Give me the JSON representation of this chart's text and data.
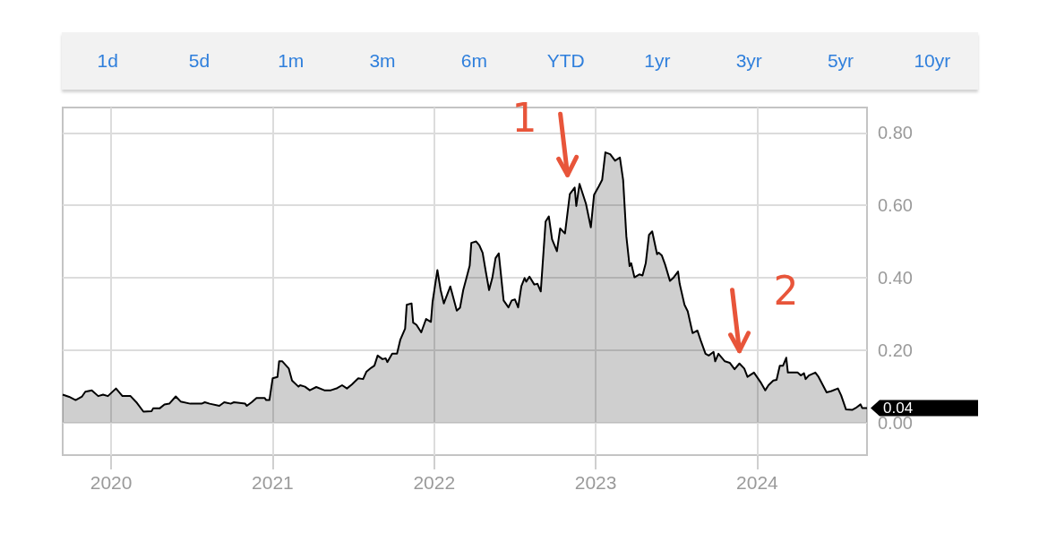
{
  "chart_data": {
    "type": "area",
    "color": "#000000",
    "grid": true,
    "xlim": [
      2019.7,
      2024.68
    ],
    "xticks": [
      2020,
      2021,
      2022,
      2023,
      2024
    ],
    "ylim": [
      -0.09,
      0.87
    ],
    "yticks": [
      {
        "value": 0,
        "label": "0.00"
      },
      {
        "value": 0.2,
        "label": "0.20"
      },
      {
        "value": 0.4,
        "label": "0.40"
      },
      {
        "value": 0.6,
        "label": "0.60"
      },
      {
        "value": 0.8,
        "label": "0.80"
      }
    ],
    "x": [
      2019.7,
      2019.74,
      2019.78,
      2019.82,
      2019.84,
      2019.88,
      2019.92,
      2019.95,
      2019.98,
      2020.03,
      2020.07,
      2020.12,
      2020.16,
      2020.2,
      2020.25,
      2020.26,
      2020.3,
      2020.33,
      2020.36,
      2020.4,
      2020.43,
      2020.49,
      2020.56,
      2020.58,
      2020.61,
      2020.67,
      2020.7,
      2020.74,
      2020.76,
      2020.83,
      2020.84,
      2020.87,
      2020.9,
      2020.95,
      2020.96,
      2020.98,
      2021.0,
      2021.03,
      2021.04,
      2021.06,
      2021.1,
      2021.12,
      2021.16,
      2021.17,
      2021.2,
      2021.23,
      2021.27,
      2021.32,
      2021.36,
      2021.4,
      2021.43,
      2021.46,
      2021.49,
      2021.53,
      2021.56,
      2021.58,
      2021.61,
      2021.63,
      2021.65,
      2021.68,
      2021.7,
      2021.71,
      2021.74,
      2021.77,
      2021.79,
      2021.82,
      2021.83,
      2021.86,
      2021.87,
      2021.89,
      2021.92,
      2021.95,
      2021.98,
      2021.99,
      2022.02,
      2022.04,
      2022.06,
      2022.1,
      2022.14,
      2022.16,
      2022.18,
      2022.2,
      2022.22,
      2022.23,
      2022.26,
      2022.28,
      2022.3,
      2022.32,
      2022.34,
      2022.36,
      2022.38,
      2022.4,
      2022.43,
      2022.46,
      2022.48,
      2022.5,
      2022.52,
      2022.54,
      2022.56,
      2022.57,
      2022.59,
      2022.62,
      2022.64,
      2022.66,
      2022.69,
      2022.71,
      2022.73,
      2022.76,
      2022.78,
      2022.81,
      2022.84,
      2022.87,
      2022.88,
      2022.9,
      2022.94,
      2022.97,
      2022.99,
      2023.02,
      2023.04,
      2023.06,
      2023.09,
      2023.12,
      2023.15,
      2023.17,
      2023.19,
      2023.21,
      2023.22,
      2023.24,
      2023.27,
      2023.29,
      2023.31,
      2023.33,
      2023.35,
      2023.38,
      2023.39,
      2023.41,
      2023.43,
      2023.46,
      2023.48,
      2023.51,
      2023.52,
      2023.55,
      2023.57,
      2023.6,
      2023.63,
      2023.65,
      2023.68,
      2023.7,
      2023.73,
      2023.74,
      2023.76,
      2023.8,
      2023.83,
      2023.86,
      2023.89,
      2023.92,
      2023.94,
      2023.98,
      2024.02,
      2024.05,
      2024.07,
      2024.1,
      2024.12,
      2024.14,
      2024.16,
      2024.18,
      2024.19,
      2024.25,
      2024.27,
      2024.29,
      2024.3,
      2024.32,
      2024.36,
      2024.38,
      2024.43,
      2024.46,
      2024.5,
      2024.52,
      2024.55,
      2024.59,
      2024.61,
      2024.64,
      2024.65,
      2024.68
    ],
    "values": [
      0.077,
      0.071,
      0.062,
      0.072,
      0.085,
      0.089,
      0.073,
      0.077,
      0.073,
      0.094,
      0.073,
      0.073,
      0.054,
      0.03,
      0.031,
      0.039,
      0.039,
      0.05,
      0.052,
      0.072,
      0.058,
      0.052,
      0.052,
      0.056,
      0.052,
      0.046,
      0.056,
      0.052,
      0.056,
      0.052,
      0.046,
      0.056,
      0.068,
      0.068,
      0.062,
      0.062,
      0.122,
      0.126,
      0.169,
      0.169,
      0.149,
      0.116,
      0.099,
      0.103,
      0.099,
      0.089,
      0.098,
      0.089,
      0.089,
      0.095,
      0.103,
      0.094,
      0.105,
      0.122,
      0.12,
      0.14,
      0.151,
      0.157,
      0.185,
      0.175,
      0.177,
      0.167,
      0.19,
      0.19,
      0.228,
      0.259,
      0.325,
      0.329,
      0.276,
      0.27,
      0.249,
      0.286,
      0.278,
      0.333,
      0.421,
      0.366,
      0.329,
      0.376,
      0.309,
      0.317,
      0.366,
      0.399,
      0.433,
      0.496,
      0.5,
      0.489,
      0.469,
      0.416,
      0.366,
      0.399,
      0.454,
      0.467,
      0.337,
      0.318,
      0.337,
      0.34,
      0.318,
      0.377,
      0.399,
      0.389,
      0.403,
      0.381,
      0.383,
      0.362,
      0.555,
      0.569,
      0.506,
      0.473,
      0.536,
      0.522,
      0.631,
      0.649,
      0.598,
      0.659,
      0.604,
      0.539,
      0.629,
      0.653,
      0.67,
      0.746,
      0.741,
      0.723,
      0.732,
      0.67,
      0.514,
      0.432,
      0.44,
      0.401,
      0.409,
      0.406,
      0.44,
      0.518,
      0.528,
      0.465,
      0.469,
      0.461,
      0.436,
      0.391,
      0.399,
      0.417,
      0.383,
      0.325,
      0.307,
      0.247,
      0.254,
      0.227,
      0.19,
      0.185,
      0.195,
      0.169,
      0.19,
      0.169,
      0.165,
      0.147,
      0.163,
      0.149,
      0.126,
      0.138,
      0.112,
      0.089,
      0.103,
      0.116,
      0.118,
      0.157,
      0.157,
      0.179,
      0.138,
      0.138,
      0.13,
      0.136,
      0.12,
      0.13,
      0.138,
      0.126,
      0.083,
      0.087,
      0.094,
      0.075,
      0.036,
      0.035,
      0.04,
      0.05,
      0.04,
      0.04
    ],
    "annotations": [
      "1d",
      "5d",
      "1m",
      "3m",
      "6m",
      "YTD",
      "1yr",
      "3yr",
      "5yr",
      "10yr",
      {
        "text": "1",
        "x": 2022.87,
        "y": 0.649
      },
      {
        "text": "2",
        "x": 2023.89,
        "y": 0.163
      },
      {
        "text": "0.04",
        "x": 2024.68,
        "y": 0.04
      }
    ]
  }
}
